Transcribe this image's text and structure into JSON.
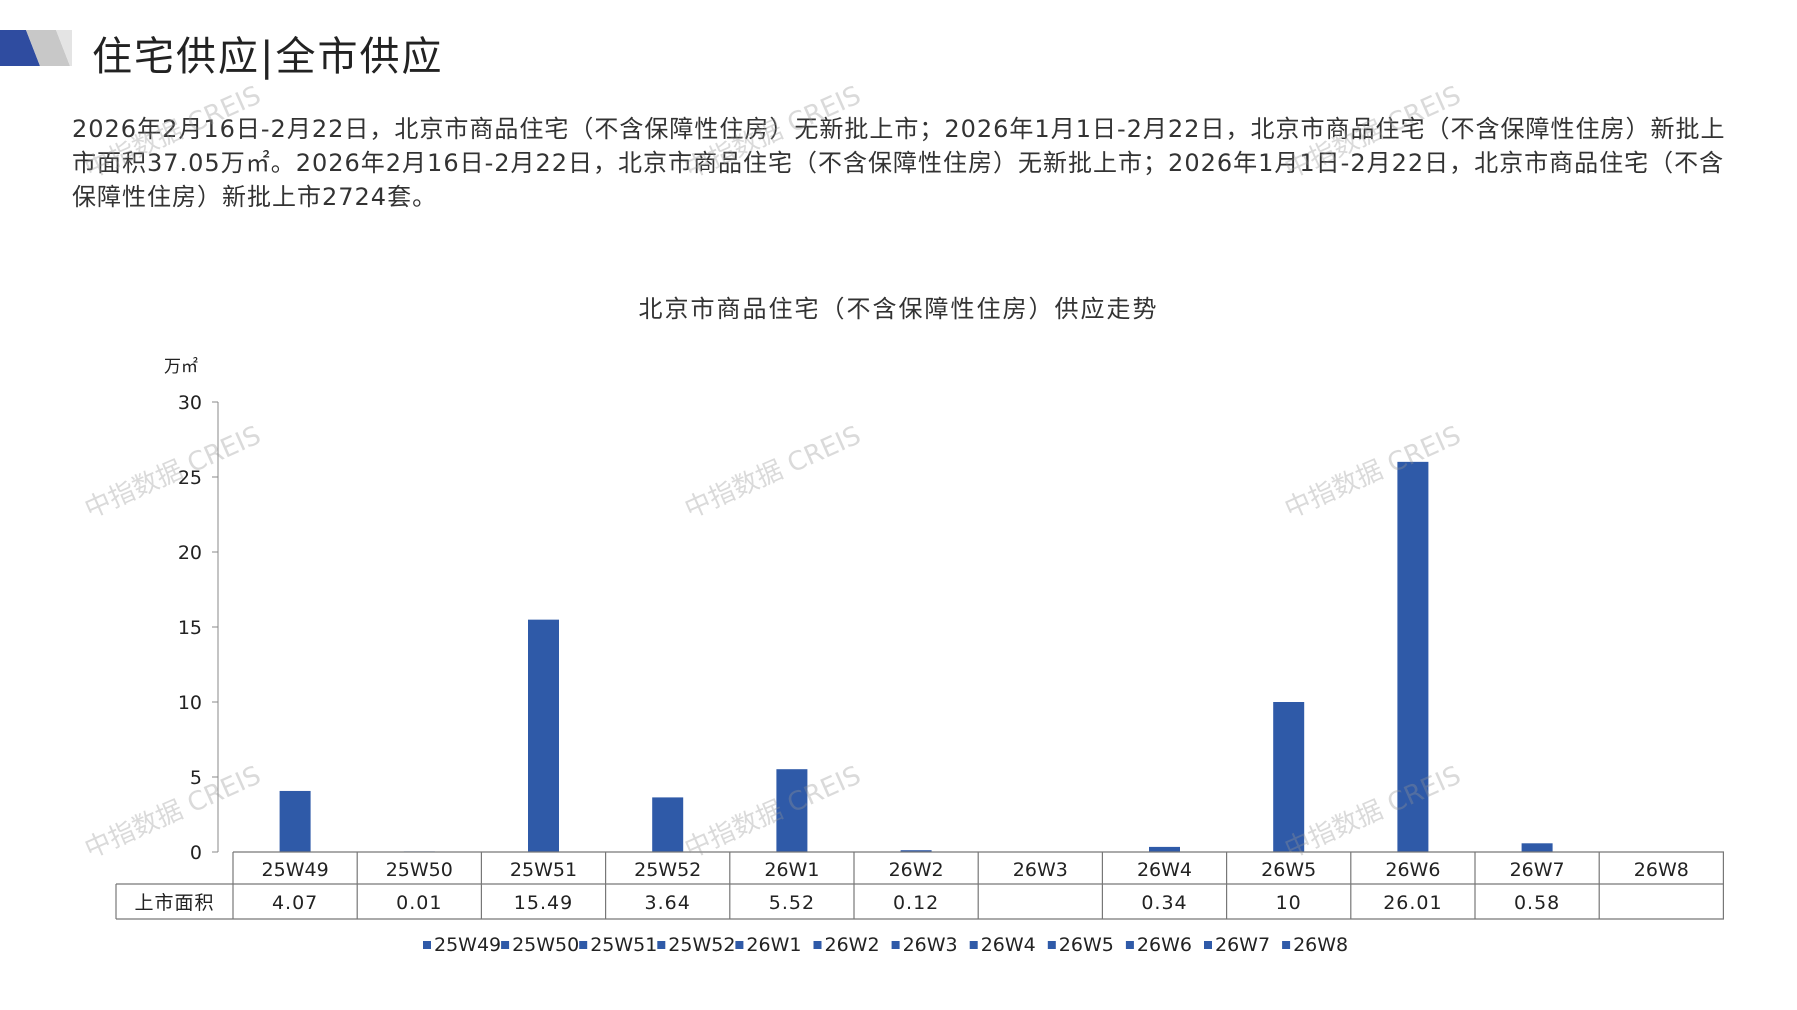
{
  "header": {
    "title": "住宅供应|全市供应"
  },
  "summary": "2026年2月16日-2月22日，北京市商品住宅（不含保障性住房）无新批上市；2026年1月1日-2月22日，北京市商品住宅（不含保障性住房）新批上市面积37.05万㎡。2026年2月16日-2月22日，北京市商品住宅（不含保障性住房）无新批上市；2026年1月1日-2月22日，北京市商品住宅（不含保障性住房）新批上市2724套。",
  "watermark": "中指数据 CREIS",
  "colors": {
    "bar": "#2F5AA8",
    "logo_blue": "#2F4CA0",
    "logo_gray": "#C8C8C8"
  },
  "chart_data": {
    "type": "bar",
    "title": "北京市商品住宅（不含保障性住房）供应走势",
    "ylabel": "万㎡",
    "ylim": [
      0,
      30
    ],
    "yticks": [
      0,
      5,
      10,
      15,
      20,
      25,
      30
    ],
    "categories": [
      "25W49",
      "25W50",
      "25W51",
      "25W52",
      "26W1",
      "26W2",
      "26W3",
      "26W4",
      "26W5",
      "26W6",
      "26W7",
      "26W8"
    ],
    "series": [
      {
        "name": "上市面积",
        "values": [
          4.07,
          0.01,
          15.49,
          3.64,
          5.52,
          0.12,
          null,
          0.34,
          10,
          26.01,
          0.58,
          null
        ],
        "labels": [
          "4.07",
          "0.01",
          "15.49",
          "3.64",
          "5.52",
          "0.12",
          "",
          "0.34",
          "10",
          "26.01",
          "0.58",
          ""
        ]
      }
    ],
    "legend": [
      "25W49",
      "25W50",
      "25W51",
      "25W52",
      "26W1",
      "26W2",
      "26W3",
      "26W4",
      "26W5",
      "26W6",
      "26W7",
      "26W8"
    ],
    "legend_position": "bottom",
    "grid": false,
    "data_table": true
  }
}
